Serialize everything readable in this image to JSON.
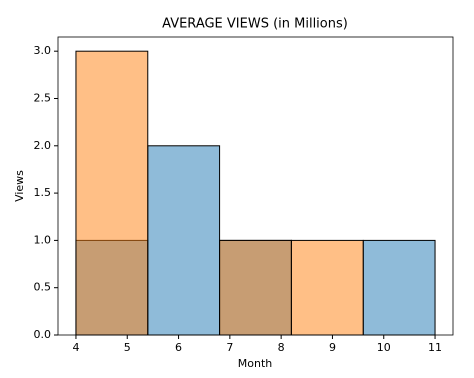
{
  "chart_data": {
    "type": "histogram",
    "title": "AVERAGE VIEWS (in Millions)",
    "x_label": "Month",
    "y_label": "Views",
    "bins": [
      4,
      5.4,
      6.8,
      8.2,
      9.6,
      11
    ],
    "series": [
      {
        "color": "#1f77b4",
        "values": [
          1,
          2,
          1,
          0,
          1
        ]
      },
      {
        "color": "#ff7f0e",
        "values": [
          3,
          0,
          1,
          1,
          0
        ]
      }
    ],
    "xlim": [
      3.65,
      11.35
    ],
    "ylim": [
      0,
      3.15
    ],
    "xticks": [
      4,
      5,
      6,
      7,
      8,
      9,
      10,
      11
    ],
    "yticks": [
      {
        "value": 0,
        "label": "0.0"
      },
      {
        "value": 0.5,
        "label": "0.5"
      },
      {
        "value": 1,
        "label": "1.0"
      },
      {
        "value": 1.5,
        "label": "1.5"
      },
      {
        "value": 2,
        "label": "2.0"
      },
      {
        "value": 2.5,
        "label": "2.5"
      },
      {
        "value": 3,
        "label": "3.0"
      }
    ]
  }
}
